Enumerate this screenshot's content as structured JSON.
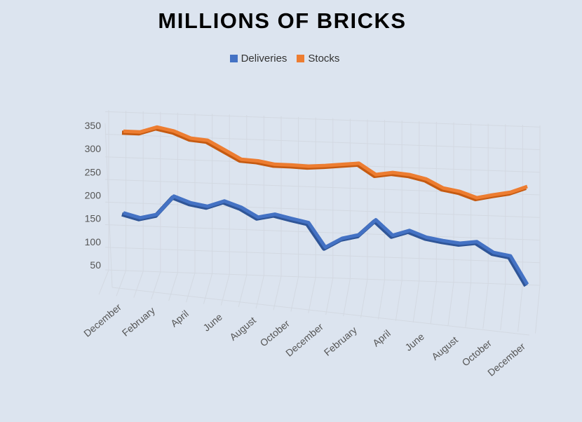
{
  "chart_data": {
    "type": "line",
    "title": "MILLIONS OF BRICKS",
    "legend_position": "top",
    "grid": true,
    "categories": [
      "December",
      "",
      "February",
      "",
      "April",
      "",
      "June",
      "",
      "August",
      "",
      "October",
      "",
      "December",
      "",
      "February",
      "",
      "April",
      "",
      "June",
      "",
      "August",
      "",
      "October",
      "",
      "December"
    ],
    "y_ticks": [
      "350",
      "300",
      "250",
      "200",
      "150",
      "100",
      "50"
    ],
    "ylim": [
      0,
      350
    ],
    "series": [
      {
        "name": "Deliveries",
        "color": "#4472c4",
        "values": [
          134,
          126,
          136,
          178,
          166,
          161,
          175,
          164,
          145,
          154,
          147,
          141,
          90,
          112,
          122,
          157,
          126,
          139,
          127,
          122,
          119,
          125,
          104,
          99,
          40
        ]
      },
      {
        "name": "Stocks",
        "color": "#ed7d31",
        "values": [
          311,
          312,
          325,
          319,
          306,
          304,
          286,
          268,
          267,
          262,
          263,
          263,
          267,
          272,
          277,
          255,
          262,
          260,
          253,
          236,
          231,
          220,
          229,
          237,
          252
        ]
      }
    ]
  }
}
